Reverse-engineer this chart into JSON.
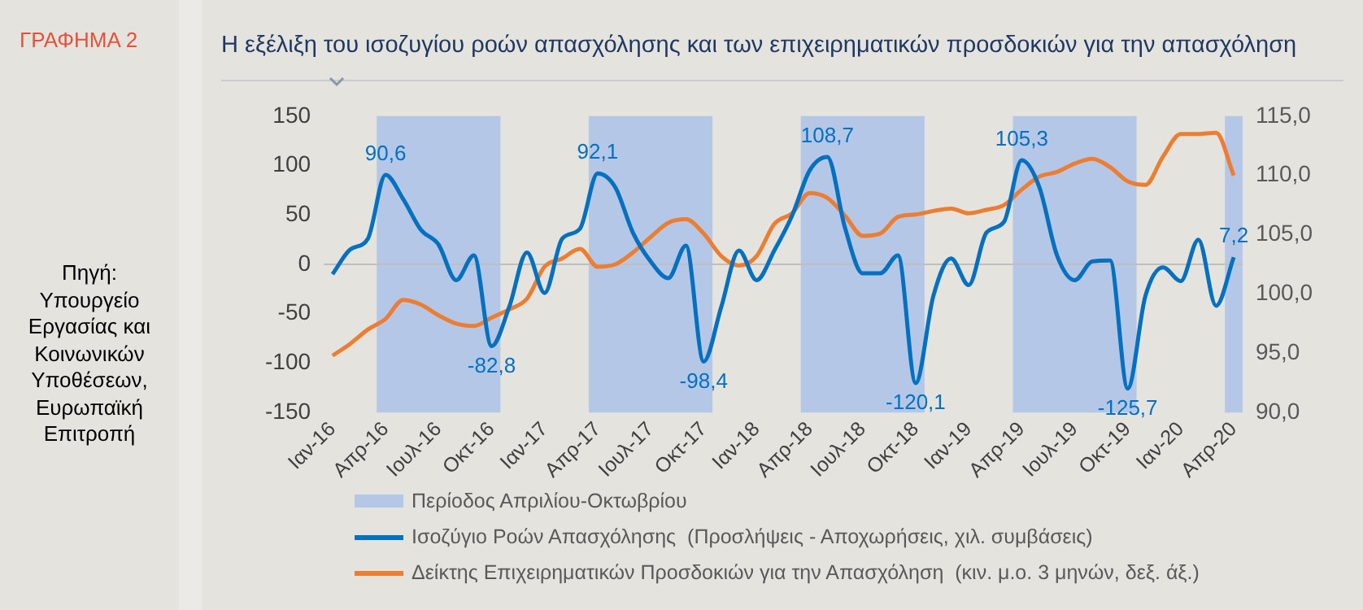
{
  "chart_data": {
    "type": "line",
    "title": "Η εξέλιξη του ισοζυγίου ροών απασχόλησης και των επιχειρηματικών προσδοκιών για την απασχόληση",
    "annotations": [
      "ΓΡΑΦΗΜΑ 2",
      "Πηγή: Υπουργείο Εργασίας και Κοινωνικών Υποθέσεων, Ευρωπαϊκή Επιτροπή"
    ],
    "categories": [
      "Ιαν-16",
      null,
      null,
      "Απρ-16",
      null,
      null,
      "Ιουλ-16",
      null,
      null,
      "Οκτ-16",
      null,
      null,
      "Ιαν-17",
      null,
      null,
      "Απρ-17",
      null,
      null,
      "Ιουλ-17",
      null,
      null,
      "Οκτ-17",
      null,
      null,
      "Ιαν-18",
      null,
      null,
      "Απρ-18",
      null,
      null,
      "Ιουλ-18",
      null,
      null,
      "Οκτ-18",
      null,
      null,
      "Ιαν-19",
      null,
      null,
      "Απρ-19",
      null,
      null,
      "Ιουλ-19",
      null,
      null,
      "Οκτ-19",
      null,
      null,
      "Ιαν-20",
      null,
      null,
      "Απρ-20"
    ],
    "series": [
      {
        "name": "Ισοζύγιο Ροών Απασχόλησης  (Προσλήψεις - Αποχωρήσεις, χιλ. συμβάσεις)",
        "color": "#0070c0",
        "values": [
          -10,
          15,
          26,
          90.6,
          66,
          35,
          20,
          -16,
          9,
          -82.8,
          -43,
          12,
          -29,
          26,
          36,
          92.1,
          78,
          32,
          3,
          -14,
          19,
          -98.4,
          -43,
          14,
          -16,
          14,
          49,
          95,
          108.7,
          37,
          -9,
          -9,
          9,
          -120.1,
          -32,
          6,
          -21,
          32,
          43,
          105.3,
          78,
          9,
          -16,
          3,
          4,
          -125.7,
          -32,
          -3,
          -17,
          25,
          -42,
          7.2
        ],
        "value_labels": [
          null,
          null,
          null,
          "90,6",
          null,
          null,
          null,
          null,
          null,
          "-82,8",
          null,
          null,
          null,
          null,
          null,
          "92,1",
          null,
          null,
          null,
          null,
          null,
          "-98,4",
          null,
          null,
          null,
          null,
          null,
          null,
          "108,7",
          null,
          null,
          null,
          null,
          "-120,1",
          null,
          null,
          null,
          null,
          null,
          "105,3",
          null,
          null,
          null,
          null,
          null,
          "-125,7",
          null,
          null,
          null,
          null,
          null,
          "7,2"
        ]
      },
      {
        "name": "Δείκτης Επιχειρηματικών Προσδοκιών για την Απασχόληση  (κιν. μ.ο. 3 μηνών, δεξ. άξ.)",
        "color": "#ed7d31",
        "axis": "y2",
        "values": [
          94.8,
          95.8,
          97.0,
          97.9,
          99.5,
          99.1,
          98.2,
          97.5,
          97.3,
          98.0,
          98.7,
          99.6,
          102.3,
          103.0,
          103.8,
          102.3,
          102.5,
          103.5,
          104.8,
          106.0,
          106.3,
          105.1,
          103.2,
          102.4,
          103.2,
          105.9,
          106.8,
          108.5,
          108.1,
          106.6,
          104.9,
          105.1,
          106.5,
          106.7,
          107.0,
          107.2,
          106.8,
          107.1,
          107.5,
          108.8,
          109.9,
          110.3,
          111.0,
          111.4,
          110.7,
          109.5,
          109.2,
          111.6,
          113.5,
          113.5,
          113.6,
          110.0
        ]
      }
    ],
    "ylim": [
      -150,
      150
    ],
    "yticks": [
      -150,
      -100,
      -50,
      0,
      50,
      100,
      150
    ],
    "y2lim": [
      90,
      115
    ],
    "y2ticks": [
      {
        "value": 90,
        "label": "90,0"
      },
      {
        "value": 95,
        "label": "95,0"
      },
      {
        "value": 100,
        "label": "100,0"
      },
      {
        "value": 105,
        "label": "105,0"
      },
      {
        "value": 110,
        "label": "110,0"
      },
      {
        "value": 115,
        "label": "115,0"
      }
    ],
    "bands": [
      {
        "axis": "x",
        "from": "Απρ-16",
        "to": "Οκτ-16",
        "label": "Περίοδος Απριλίου-Οκτωβρίου",
        "color": "#b4c7e7"
      },
      {
        "axis": "x",
        "from": "Απρ-17",
        "to": "Οκτ-17",
        "color": "#b4c7e7"
      },
      {
        "axis": "x",
        "from": "Απρ-18",
        "to": "Οκτ-18",
        "color": "#b4c7e7"
      },
      {
        "axis": "x",
        "from": "Απρ-19",
        "to": "Οκτ-19",
        "color": "#b4c7e7"
      },
      {
        "axis": "x",
        "from": "Απρ-20",
        "to": "Απρ-20",
        "color": "#b4c7e7"
      }
    ],
    "ref_lines": [
      {
        "axis": "y",
        "value": 0,
        "color": "#bfbfbf"
      }
    ],
    "legend": "bottom",
    "grid": false,
    "marker": "none",
    "line_style": "solid"
  }
}
